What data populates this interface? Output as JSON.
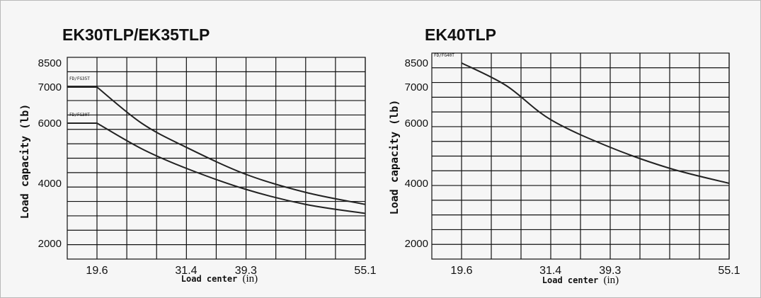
{
  "colors": {
    "background": "#f6f6f6",
    "ink": "#111111",
    "curve": "#222222"
  },
  "chart_data": [
    {
      "type": "line",
      "title": "EK30TLP/EK35TLP",
      "xlabel": "Load center",
      "xunit": "(in)",
      "ylabel": "Load capacity (lb)",
      "xticks": [
        {
          "value": 19.6,
          "label": "19.6"
        },
        {
          "value": 31.4,
          "label": "31.4"
        },
        {
          "value": 39.3,
          "label": "39.3"
        },
        {
          "value": 55.1,
          "label": "55.1"
        }
      ],
      "yticks": [
        {
          "value": 2000,
          "label": "2000"
        },
        {
          "value": 4000,
          "label": "4000"
        },
        {
          "value": 6000,
          "label": "6000"
        },
        {
          "value": 7000,
          "label": "7000"
        },
        {
          "value": 8500,
          "label": "8500"
        }
      ],
      "grid": true,
      "series": [
        {
          "name": "FD/FG35T",
          "x": [
            19.6,
            25.5,
            31.4,
            39.3,
            47.2,
            55.1
          ],
          "y": [
            7000,
            6000,
            5200,
            4300,
            3700,
            3300
          ]
        },
        {
          "name": "FD/FG30T",
          "x": [
            19.6,
            25.5,
            31.4,
            39.3,
            47.2,
            55.1
          ],
          "y": [
            6000,
            5150,
            4500,
            3800,
            3300,
            3000
          ]
        }
      ]
    },
    {
      "type": "line",
      "title": "EK40TLP",
      "xlabel": "Load center",
      "xunit": "(in)",
      "ylabel": "Load capacity (lb)",
      "xticks": [
        {
          "value": 19.6,
          "label": "19.6"
        },
        {
          "value": 31.4,
          "label": "31.4"
        },
        {
          "value": 39.3,
          "label": "39.3"
        },
        {
          "value": 55.1,
          "label": "55.1"
        }
      ],
      "yticks": [
        {
          "value": 2000,
          "label": "2000"
        },
        {
          "value": 4000,
          "label": "4000"
        },
        {
          "value": 6000,
          "label": "6000"
        },
        {
          "value": 7000,
          "label": "7000"
        },
        {
          "value": 8500,
          "label": "8500"
        }
      ],
      "grid": true,
      "series": [
        {
          "name": "FD/FG40T",
          "x": [
            19.6,
            25.5,
            31.4,
            39.3,
            47.2,
            55.1
          ],
          "y": [
            8500,
            7100,
            6100,
            5200,
            4500,
            4000
          ]
        }
      ]
    }
  ]
}
